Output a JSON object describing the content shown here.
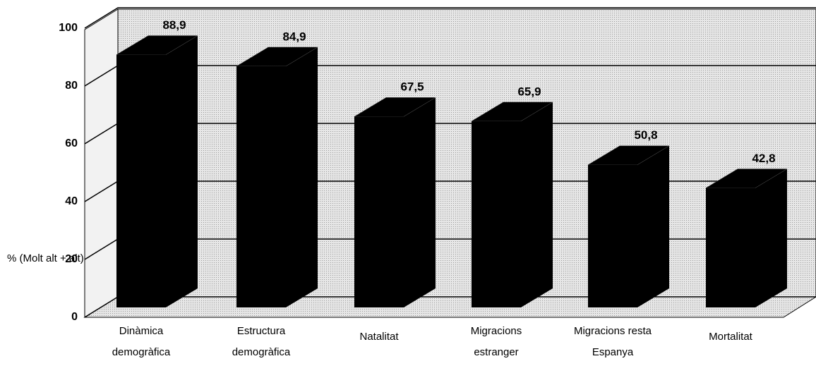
{
  "chart_data": {
    "type": "bar",
    "y_label": "% (Molt alt + alt)",
    "categories": [
      "Dinàmica\ndemogràfica",
      "Estructura\ndemogràfica",
      "Natalitat",
      "Migracions\nestranger",
      "Migracions resta\nEspanya",
      "Mortalitat"
    ],
    "values": [
      88.9,
      84.9,
      67.5,
      65.9,
      50.8,
      42.8
    ],
    "value_labels": [
      "88,9",
      "84,9",
      "67,5",
      "65,9",
      "50,8",
      "42,8"
    ],
    "color": "#000000",
    "ylim": [
      0,
      100
    ],
    "yticks": [
      0,
      20,
      40,
      60,
      80,
      100
    ],
    "grid": true
  }
}
